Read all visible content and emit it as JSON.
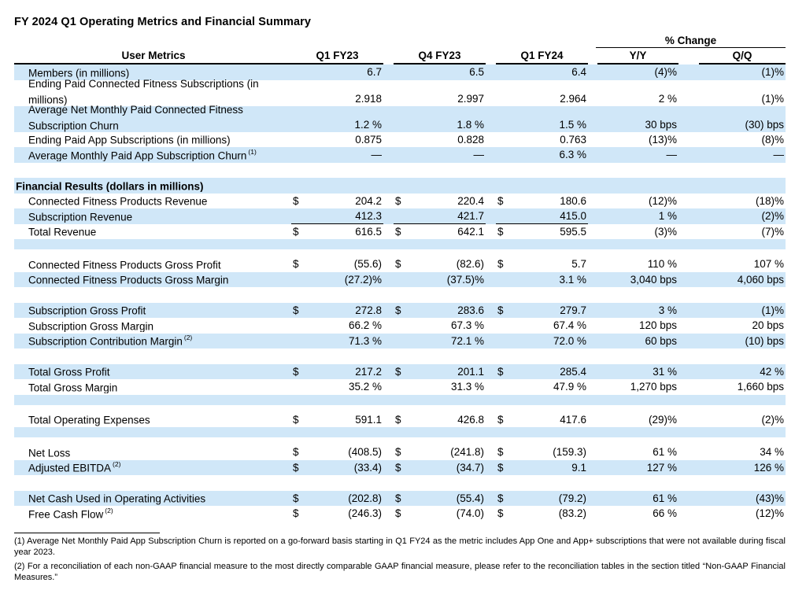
{
  "title": "FY 2024 Q1 Operating Metrics and Financial Summary",
  "colors": {
    "stripe": "#d0e7f8",
    "text": "#000000"
  },
  "table": {
    "pct_change_label": "% Change",
    "headers": {
      "section": "User Metrics",
      "q1fy23": "Q1 FY23",
      "q4fy23": "Q4 FY23",
      "q1fy24": "Q1 FY24",
      "yy": "Y/Y",
      "qq": "Q/Q"
    },
    "rows": [
      {
        "cls": "blue",
        "label": "Members (in millions)",
        "v1": "6.7",
        "v2": "6.5",
        "v3": "6.4",
        "yy": "(4)%",
        "qq": "(1)%"
      },
      {
        "cls": "white two",
        "label": "Ending Paid Connected Fitness Subscriptions (in millions)",
        "v1": "2.918",
        "v2": "2.997",
        "v3": "2.964",
        "yy": "2 %",
        "qq": "(1)%"
      },
      {
        "cls": "blue two",
        "label": "Average Net Monthly Paid Connected Fitness Subscription Churn",
        "v1": "1.2 %",
        "v2": "1.8 %",
        "v3": "1.5 %",
        "yy": "30 bps",
        "qq": "(30) bps"
      },
      {
        "cls": "white",
        "label": "Ending Paid App Subscriptions (in millions)",
        "v1": "0.875",
        "v2": "0.828",
        "v3": "0.763",
        "yy": "(13)%",
        "qq": "(8)%"
      },
      {
        "cls": "blue",
        "label": "Average Monthly Paid App Subscription Churn",
        "sup": "(1)",
        "v1": "—",
        "v2": "—",
        "v3": "6.3 %",
        "yy": "—",
        "qq": "—"
      },
      {
        "cls": "sp-lg white"
      },
      {
        "cls": "blue section",
        "label": "Financial Results (dollars in millions)"
      },
      {
        "cls": "white",
        "label": "Connected Fitness Products Revenue",
        "d1": "$",
        "v1": "204.2",
        "d2": "$",
        "v2": "220.4",
        "d3": "$",
        "v3": "180.6",
        "yy": "(12)%",
        "qq": "(18)%"
      },
      {
        "cls": "blue ul",
        "label": "Subscription Revenue",
        "v1": "412.3",
        "v2": "421.7",
        "v3": "415.0",
        "yy": "1 %",
        "qq": "(2)%"
      },
      {
        "cls": "white",
        "label": "Total Revenue",
        "d1": "$",
        "v1": "616.5",
        "d2": "$",
        "v2": "642.1",
        "d3": "$",
        "v3": "595.5",
        "yy": "(3)%",
        "qq": "(7)%"
      },
      {
        "cls": "sp-sm blue"
      },
      {
        "cls": "sp-xs white"
      },
      {
        "cls": "white",
        "label": "Connected Fitness Products Gross Profit",
        "d1": "$",
        "v1": "(55.6)",
        "d2": "$",
        "v2": "(82.6)",
        "d3": "$",
        "v3": "5.7",
        "yy": "110 %",
        "qq": "107 %"
      },
      {
        "cls": "blue",
        "label": "Connected Fitness Products Gross Margin",
        "v1": "(27.2)%",
        "v2": "(37.5)%",
        "v3": "3.1 %",
        "yy": "3,040 bps",
        "qq": "4,060 bps"
      },
      {
        "cls": "sp-lg white"
      },
      {
        "cls": "blue",
        "label": "Subscription Gross Profit",
        "d1": "$",
        "v1": "272.8",
        "d2": "$",
        "v2": "283.6",
        "d3": "$",
        "v3": "279.7",
        "yy": "3 %",
        "qq": "(1)%"
      },
      {
        "cls": "white",
        "label": "Subscription Gross Margin",
        "v1": "66.2 %",
        "v2": "67.3 %",
        "v3": "67.4 %",
        "yy": "120 bps",
        "qq": "20 bps"
      },
      {
        "cls": "blue",
        "label": "Subscription Contribution Margin",
        "sup": "(2)",
        "v1": "71.3 %",
        "v2": "72.1 %",
        "v3": "72.0 %",
        "yy": "60 bps",
        "qq": "(10) bps"
      },
      {
        "cls": "sp-lg white"
      },
      {
        "cls": "blue",
        "label": "Total Gross Profit",
        "d1": "$",
        "v1": "217.2",
        "d2": "$",
        "v2": "201.1",
        "d3": "$",
        "v3": "285.4",
        "yy": "31 %",
        "qq": "42 %"
      },
      {
        "cls": "white",
        "label": "Total Gross Margin",
        "v1": "35.2 %",
        "v2": "31.3 %",
        "v3": "47.9 %",
        "yy": "1,270 bps",
        "qq": "1,660 bps"
      },
      {
        "cls": "sp-sm blue"
      },
      {
        "cls": "sp-xs white"
      },
      {
        "cls": "white",
        "label": "Total Operating Expenses",
        "d1": "$",
        "v1": "591.1",
        "d2": "$",
        "v2": "426.8",
        "d3": "$",
        "v3": "417.6",
        "yy": "(29)%",
        "qq": "(2)%"
      },
      {
        "cls": "sp-sm blue"
      },
      {
        "cls": "sp-xs white"
      },
      {
        "cls": "white",
        "label": "Net Loss",
        "d1": "$",
        "v1": "(408.5)",
        "d2": "$",
        "v2": "(241.8)",
        "d3": "$",
        "v3": "(159.3)",
        "yy": "61 %",
        "qq": "34 %"
      },
      {
        "cls": "blue",
        "label": "Adjusted EBITDA",
        "sup": "(2)",
        "d1": "$",
        "v1": "(33.4)",
        "d2": "$",
        "v2": "(34.7)",
        "d3": "$",
        "v3": "9.1",
        "yy": "127 %",
        "qq": "126 %"
      },
      {
        "cls": "sp-lg white"
      },
      {
        "cls": "blue",
        "label": "Net Cash Used in Operating Activities",
        "d1": "$",
        "v1": "(202.8)",
        "d2": "$",
        "v2": "(55.4)",
        "d3": "$",
        "v3": "(79.2)",
        "yy": "61 %",
        "qq": "(43)%"
      },
      {
        "cls": "white",
        "label": "Free Cash Flow",
        "sup": "(2)",
        "d1": "$",
        "v1": "(246.3)",
        "d2": "$",
        "v2": "(74.0)",
        "d3": "$",
        "v3": "(83.2)",
        "yy": "66 %",
        "qq": "(12)%"
      }
    ]
  },
  "footnotes": [
    "(1) Average Net Monthly Paid App Subscription Churn is reported on a go-forward basis starting in Q1 FY24 as the metric includes App One and App+ subscriptions that were not available during fiscal year 2023.",
    "(2) For a reconciliation of each non-GAAP financial measure to the most directly comparable GAAP financial measure, please refer to the reconciliation tables in the section titled “Non-GAAP Financial Measures.”"
  ]
}
